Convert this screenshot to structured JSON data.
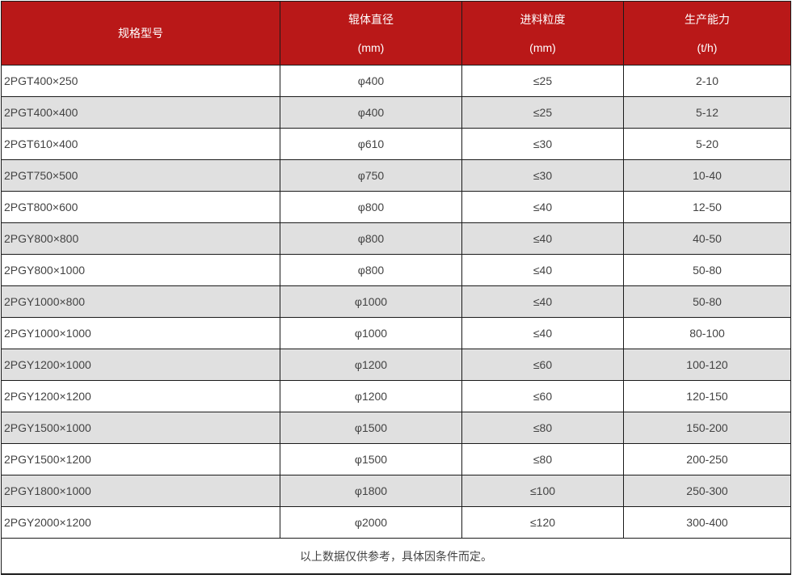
{
  "table": {
    "headers": [
      {
        "title": "规格型号",
        "unit": ""
      },
      {
        "title": "辊体直径",
        "unit": "(mm)"
      },
      {
        "title": "进料粒度",
        "unit": "(mm)"
      },
      {
        "title": "生产能力",
        "unit": "(t/h)"
      }
    ],
    "rows": [
      [
        "2PGT400×250",
        "φ400",
        "≤25",
        "2-10"
      ],
      [
        "2PGT400×400",
        "φ400",
        "≤25",
        "5-12"
      ],
      [
        "2PGT610×400",
        "φ610",
        "≤30",
        "5-20"
      ],
      [
        "2PGT750×500",
        "φ750",
        "≤30",
        "10-40"
      ],
      [
        "2PGT800×600",
        "φ800",
        "≤40",
        "12-50"
      ],
      [
        "2PGY800×800",
        "φ800",
        "≤40",
        "40-50"
      ],
      [
        "2PGY800×1000",
        "φ800",
        "≤40",
        "50-80"
      ],
      [
        "2PGY1000×800",
        "φ1000",
        "≤40",
        "50-80"
      ],
      [
        "2PGY1000×1000",
        "φ1000",
        "≤40",
        "80-100"
      ],
      [
        "2PGY1200×1000",
        "φ1200",
        "≤60",
        "100-120"
      ],
      [
        "2PGY1200×1200",
        "φ1200",
        "≤60",
        "120-150"
      ],
      [
        "2PGY1500×1000",
        "φ1500",
        "≤80",
        "150-200"
      ],
      [
        "2PGY1500×1200",
        "φ1500",
        "≤80",
        "200-250"
      ],
      [
        "2PGY1800×1000",
        "φ1800",
        "≤100",
        "250-300"
      ],
      [
        "2PGY2000×1200",
        "φ2000",
        "≤120",
        "300-400"
      ]
    ],
    "footnote": "以上数据仅供参考，具体因条件而定。"
  },
  "colors": {
    "header_bg": "#b91818",
    "header_text": "#ffffff",
    "alt_row_bg": "#e0e0e0",
    "border": "#1b1b1b",
    "body_text": "#434343"
  },
  "chart_data": {
    "type": "table",
    "title": "",
    "columns": [
      "规格型号",
      "辊体直径 (mm)",
      "进料粒度 (mm)",
      "生产能力 (t/h)"
    ],
    "rows": [
      [
        "2PGT400×250",
        "φ400",
        "≤25",
        "2-10"
      ],
      [
        "2PGT400×400",
        "φ400",
        "≤25",
        "5-12"
      ],
      [
        "2PGT610×400",
        "φ610",
        "≤30",
        "5-20"
      ],
      [
        "2PGT750×500",
        "φ750",
        "≤30",
        "10-40"
      ],
      [
        "2PGT800×600",
        "φ800",
        "≤40",
        "12-50"
      ],
      [
        "2PGY800×800",
        "φ800",
        "≤40",
        "40-50"
      ],
      [
        "2PGY800×1000",
        "φ800",
        "≤40",
        "50-80"
      ],
      [
        "2PGY1000×800",
        "φ1000",
        "≤40",
        "50-80"
      ],
      [
        "2PGY1000×1000",
        "φ1000",
        "≤40",
        "80-100"
      ],
      [
        "2PGY1200×1000",
        "φ1200",
        "≤60",
        "100-120"
      ],
      [
        "2PGY1200×1200",
        "φ1200",
        "≤60",
        "120-150"
      ],
      [
        "2PGY1500×1000",
        "φ1500",
        "≤80",
        "150-200"
      ],
      [
        "2PGY1500×1200",
        "φ1500",
        "≤80",
        "200-250"
      ],
      [
        "2PGY1800×1000",
        "φ1800",
        "≤100",
        "250-300"
      ],
      [
        "2PGY2000×1200",
        "φ2000",
        "≤120",
        "300-400"
      ]
    ],
    "footnote": "以上数据仅供参考，具体因条件而定。"
  }
}
